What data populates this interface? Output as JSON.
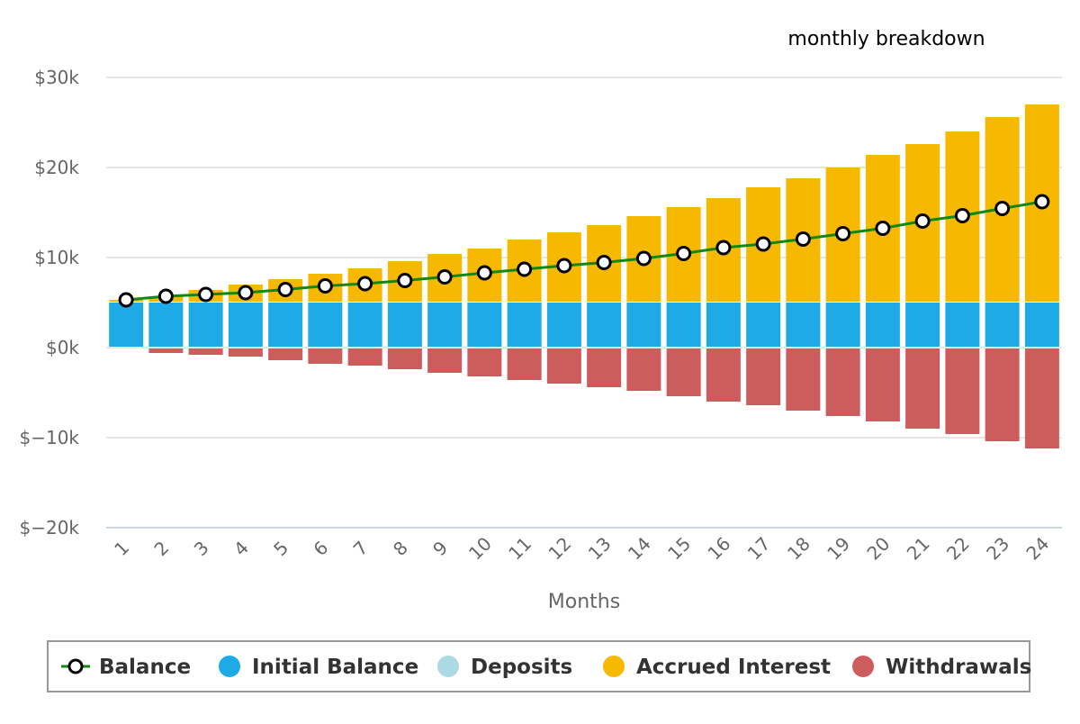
{
  "chart_data": {
    "type": "bar",
    "title": "monthly breakdown",
    "xlabel": "Months",
    "ylabel": "",
    "categories": [
      "1",
      "2",
      "3",
      "4",
      "5",
      "6",
      "7",
      "8",
      "9",
      "10",
      "11",
      "12",
      "13",
      "14",
      "15",
      "16",
      "17",
      "18",
      "19",
      "20",
      "21",
      "22",
      "23",
      "24"
    ],
    "ylim": [
      -20000,
      30000
    ],
    "yticks": [
      30000,
      20000,
      10000,
      0,
      -10000,
      -20000
    ],
    "ytick_labels": [
      "$30k",
      "$20k",
      "$10k",
      "$0k",
      "$−10k",
      "$−20k"
    ],
    "grid": true,
    "legend_position": "bottom",
    "stacked": true,
    "series": [
      {
        "name": "Balance",
        "type": "line",
        "color": "#118811",
        "values": [
          5300,
          5700,
          5900,
          6100,
          6450,
          6850,
          7100,
          7450,
          7850,
          8300,
          8700,
          9100,
          9450,
          9900,
          10450,
          11100,
          11500,
          12050,
          12650,
          13250,
          14050,
          14650,
          15450,
          16200
        ]
      },
      {
        "name": "Initial Balance",
        "type": "bar",
        "color": "#1eaae7",
        "values": [
          5000,
          5000,
          5000,
          5000,
          5000,
          5000,
          5000,
          5000,
          5000,
          5000,
          5000,
          5000,
          5000,
          5000,
          5000,
          5000,
          5000,
          5000,
          5000,
          5000,
          5000,
          5000,
          5000,
          5000
        ]
      },
      {
        "name": "Deposits",
        "type": "bar",
        "color": "#add8e6",
        "values": [
          0,
          0,
          0,
          0,
          0,
          0,
          0,
          0,
          0,
          0,
          0,
          0,
          0,
          0,
          0,
          0,
          0,
          0,
          0,
          0,
          0,
          0,
          0,
          0
        ]
      },
      {
        "name": "Accrued Interest",
        "type": "bar",
        "color": "#f7b900",
        "values": [
          300,
          700,
          1400,
          2000,
          2600,
          3200,
          3800,
          4600,
          5400,
          6000,
          7000,
          7800,
          8600,
          9600,
          10600,
          11600,
          12800,
          13800,
          15000,
          16400,
          17600,
          19000,
          20600,
          22000
        ]
      },
      {
        "name": "Withdrawals",
        "type": "bar",
        "color": "#cd5c5c",
        "values": [
          0,
          -600,
          -800,
          -1000,
          -1400,
          -1800,
          -2000,
          -2400,
          -2800,
          -3200,
          -3600,
          -4000,
          -4400,
          -4800,
          -5400,
          -6000,
          -6400,
          -7000,
          -7600,
          -8200,
          -9000,
          -9600,
          -10400,
          -11200
        ]
      }
    ]
  }
}
